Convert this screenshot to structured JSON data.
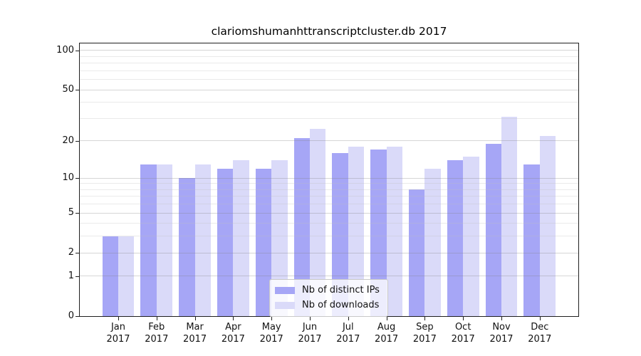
{
  "chart_data": {
    "type": "bar",
    "title": "clariomshumanhttranscriptcluster.db 2017",
    "year_label": "2017",
    "categories": [
      "Jan",
      "Feb",
      "Mar",
      "Apr",
      "May",
      "Jun",
      "Jul",
      "Aug",
      "Sep",
      "Oct",
      "Nov",
      "Dec"
    ],
    "series": [
      {
        "name": "Nb of distinct IPs",
        "color": "#a6a6f6",
        "values": [
          3,
          13,
          10,
          12,
          12,
          21,
          16,
          17,
          8,
          14,
          19,
          13
        ]
      },
      {
        "name": "Nb of downloads",
        "color": "#dadaf9",
        "values": [
          3,
          13,
          13,
          14,
          14,
          25,
          18,
          18,
          12,
          15,
          31,
          22
        ]
      }
    ],
    "axis": {
      "yticks": [
        100,
        50,
        20,
        10,
        5,
        2,
        1,
        0
      ],
      "major_gridlines": [
        1,
        2,
        5,
        10,
        20,
        50,
        100
      ],
      "minor_gridlines": [
        3,
        4,
        6,
        7,
        8,
        9,
        30,
        40,
        60,
        70,
        80,
        90
      ],
      "scale": "log10(1+v)",
      "ylim": [
        0,
        111
      ]
    },
    "legend_position": "bottom-center",
    "grid": "on"
  },
  "colors": {
    "frame": "#1f1f1f",
    "background": "#ffffff",
    "bar_distinct_ips": "#a6a6f6",
    "bar_downloads": "#dadaf9"
  }
}
